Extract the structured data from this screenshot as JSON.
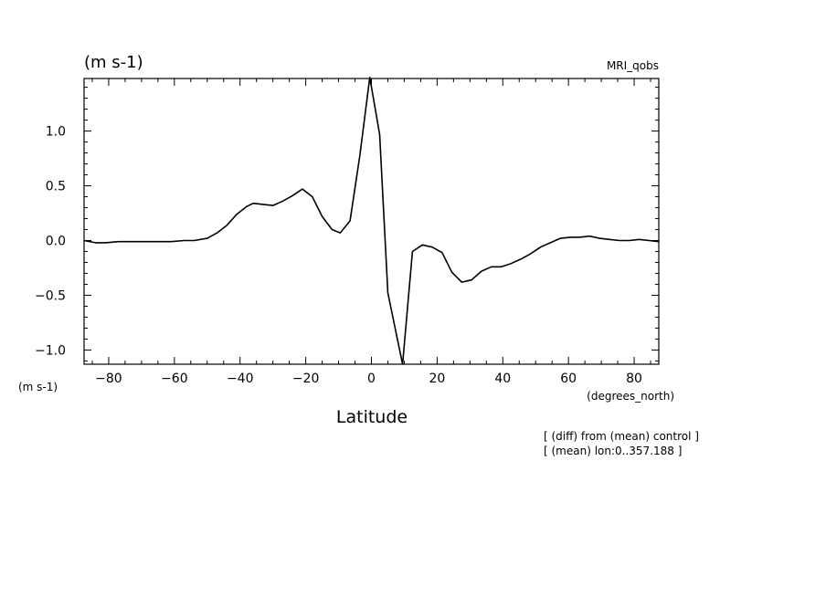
{
  "chart_data": {
    "type": "line",
    "title": "MRI_qobs",
    "y_unit_top": "(m s-1)",
    "y_unit_left": "(m s-1)",
    "xlabel": "Latitude",
    "x_unit": "(degrees_north)",
    "notes": [
      "[ (diff) from (mean) control ]",
      "[ (mean) lon:0..357.188 ]"
    ],
    "xlim": [
      -87.5,
      87.5
    ],
    "ylim": [
      -1.13,
      1.48
    ],
    "x_ticks": [
      -80,
      -60,
      -40,
      -20,
      0,
      20,
      40,
      60,
      80
    ],
    "x_tick_labels": [
      "−80",
      "−60",
      "−40",
      "−20",
      "0",
      "20",
      "40",
      "60",
      "80"
    ],
    "y_ticks": [
      -1.0,
      -0.5,
      0.0,
      0.5,
      1.0
    ],
    "y_tick_labels": [
      "−1.0",
      "−0.5",
      "0.0",
      "0.5",
      "1.0"
    ],
    "grid": false,
    "series": [
      {
        "x": [
          -87.5,
          -84,
          -81,
          -77,
          -73,
          -69,
          -65,
          -61,
          -57,
          -54,
          -50,
          -47,
          -44,
          -41,
          -38,
          -36,
          -33,
          -30,
          -27,
          -24,
          -21,
          -18,
          -15,
          -12,
          -9.5,
          -6.5,
          -3.5,
          -0.5,
          2.5,
          5,
          9.5,
          12.5,
          15.5,
          18.5,
          21.5,
          24.5,
          27.5,
          30.5,
          33.5,
          36.5,
          39.5,
          42.5,
          45.5,
          48.5,
          51.5,
          54.5,
          57.5,
          60.5,
          63.5,
          66.5,
          69.5,
          72.5,
          75.5,
          78.5,
          81.5,
          84.5,
          87.5
        ],
        "y": [
          0.0,
          -0.02,
          -0.02,
          -0.01,
          -0.01,
          -0.01,
          -0.01,
          -0.01,
          0.0,
          0.0,
          0.02,
          0.07,
          0.14,
          0.24,
          0.31,
          0.34,
          0.33,
          0.32,
          0.36,
          0.41,
          0.47,
          0.4,
          0.22,
          0.1,
          0.07,
          0.18,
          0.78,
          1.49,
          0.97,
          -0.48,
          -1.13,
          -0.1,
          -0.04,
          -0.06,
          -0.11,
          -0.29,
          -0.38,
          -0.36,
          -0.28,
          -0.24,
          -0.24,
          -0.21,
          -0.17,
          -0.12,
          -0.06,
          -0.02,
          0.02,
          0.03,
          0.03,
          0.04,
          0.02,
          0.01,
          0.0,
          0.0,
          0.01,
          0.0,
          -0.01
        ]
      }
    ]
  }
}
